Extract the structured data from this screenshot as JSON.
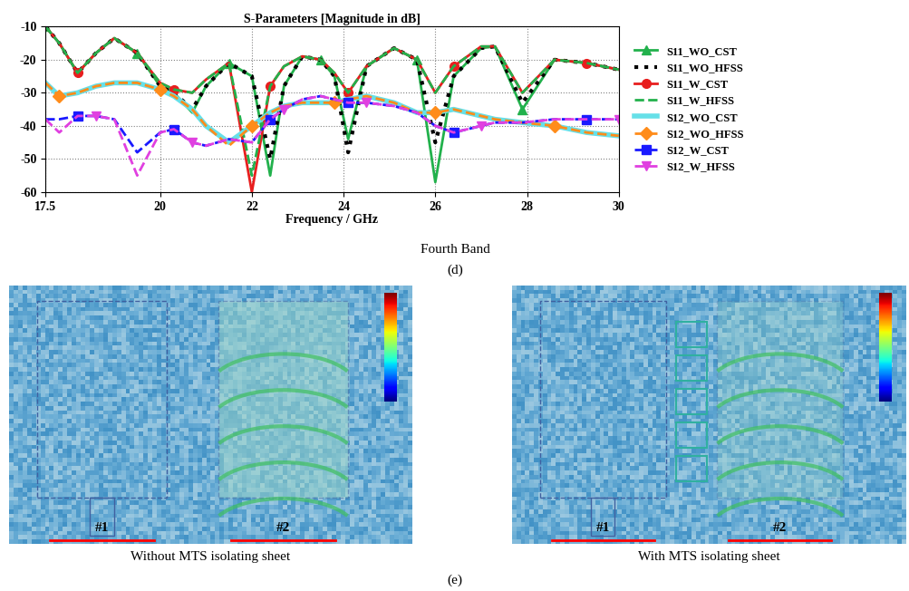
{
  "chart_data": {
    "type": "line",
    "title": "S-Parameters [Magnitude in dB]",
    "x_label": "Frequency / GHz",
    "caption": "Fourth Band",
    "panel_label": "(d)",
    "x": [
      17.5,
      17.8,
      18.2,
      18.6,
      19.0,
      19.5,
      20.0,
      20.3,
      20.7,
      21.0,
      21.5,
      22.0,
      22.4,
      22.7,
      23.1,
      23.5,
      23.8,
      24.1,
      24.5,
      25.1,
      25.6,
      26.0,
      26.4,
      27.0,
      27.3,
      27.9,
      28.6,
      29.3,
      30.0
    ],
    "xlim": [
      17.5,
      30
    ],
    "xticks": [
      17.5,
      20,
      22,
      24,
      26,
      28,
      30
    ],
    "ylim": [
      -60,
      -10
    ],
    "yticks": [
      -60,
      -50,
      -40,
      -30,
      -20,
      -10
    ],
    "grid": true,
    "legend": "center left",
    "series": [
      {
        "name": "S11_WO_CST",
        "color": "#22b14c",
        "marker": "triangle",
        "line_style": "solid",
        "values": [
          -10,
          -15,
          -24,
          -18,
          -13.5,
          -18,
          -28,
          -30,
          -36,
          -28,
          -21,
          -25,
          -55,
          -28,
          -19,
          -20,
          -25,
          -44,
          -22,
          -16.5,
          -20,
          -57,
          -25,
          -16.5,
          -16,
          -35,
          -20,
          -21,
          -23
        ]
      },
      {
        "name": "S11_WO_HFSS",
        "color": "#000000",
        "marker": "none",
        "line_style": "dotted",
        "values": [
          -10,
          -15,
          -24,
          -18,
          -13.5,
          -18,
          -28,
          -30,
          -35,
          -28,
          -21,
          -25,
          -50,
          -28,
          -19,
          -20,
          -25,
          -48,
          -22,
          -16.5,
          -20,
          -45,
          -25,
          -16.5,
          -16,
          -33,
          -20,
          -21,
          -23
        ]
      },
      {
        "name": "S11_W_CST",
        "color": "#e81e1e",
        "marker": "circle",
        "line_style": "solid",
        "values": [
          -10,
          -15,
          -24,
          -18,
          -13.5,
          -18,
          -27,
          -29,
          -30,
          -26,
          -21,
          -60,
          -28,
          -22,
          -19,
          -20,
          -24,
          -30,
          -22,
          -16.5,
          -20,
          -30,
          -22,
          -16,
          -16,
          -30,
          -20,
          -21,
          -23
        ]
      },
      {
        "name": "S11_W_HFSS",
        "color": "#22b14c",
        "marker": "none",
        "line_style": "dashed",
        "values": [
          -10,
          -15,
          -24,
          -18,
          -13.5,
          -18,
          -27,
          -29,
          -30,
          -26,
          -21,
          -55,
          -28,
          -22,
          -19,
          -20,
          -24,
          -30,
          -22,
          -16.5,
          -20,
          -30,
          -22,
          -16,
          -16,
          -30,
          -20,
          -21,
          -23
        ]
      },
      {
        "name": "S12_WO_CST",
        "color": "#66e0e8",
        "marker": "none",
        "line_style": "solid",
        "values": [
          -27,
          -31,
          -30,
          -28,
          -27,
          -27,
          -29,
          -31,
          -35,
          -40,
          -45,
          -40,
          -36,
          -34,
          -33,
          -33,
          -33,
          -32,
          -31,
          -33,
          -36,
          -36,
          -35,
          -37,
          -38,
          -39,
          -40,
          -42,
          -43
        ]
      },
      {
        "name": "S12_WO_HFSS",
        "color": "#ff8c1a",
        "marker": "diamond",
        "line_style": "dashed",
        "values": [
          -27,
          -31,
          -30,
          -28,
          -27,
          -27,
          -29,
          -31,
          -35,
          -40,
          -46,
          -40,
          -36,
          -34,
          -33,
          -33,
          -33,
          -32,
          -31,
          -33,
          -36,
          -36,
          -35,
          -37,
          -38,
          -39,
          -40,
          -42,
          -43
        ]
      },
      {
        "name": "S12_W_CST",
        "color": "#1a1aff",
        "marker": "square",
        "line_style": "dashed",
        "values": [
          -38,
          -38,
          -37,
          -37,
          -38,
          -48,
          -42,
          -41,
          -45,
          -46,
          -44,
          -45,
          -38,
          -35,
          -32,
          -31,
          -32,
          -33,
          -33,
          -34,
          -36,
          -40,
          -42,
          -40,
          -39,
          -39,
          -38,
          -38,
          -38
        ]
      },
      {
        "name": "S12_W_HFSS",
        "color": "#e040e0",
        "marker": "triangle_down",
        "line_style": "dashed",
        "values": [
          -38,
          -42,
          -37,
          -37,
          -38,
          -55,
          -42,
          -41,
          -45,
          -46,
          -44,
          -45,
          -38,
          -35,
          -32,
          -31,
          -32,
          -33,
          -33,
          -34,
          -36,
          -40,
          -42,
          -40,
          -39,
          -39,
          -38,
          -38,
          -38
        ]
      }
    ]
  },
  "field_plots": {
    "panel_label": "(e)",
    "panels": [
      {
        "caption": "Without MTS isolating sheet",
        "port_labels": [
          "#1",
          "#2"
        ]
      },
      {
        "caption": "With MTS isolating sheet",
        "port_labels": [
          "#1",
          "#2"
        ]
      }
    ]
  }
}
